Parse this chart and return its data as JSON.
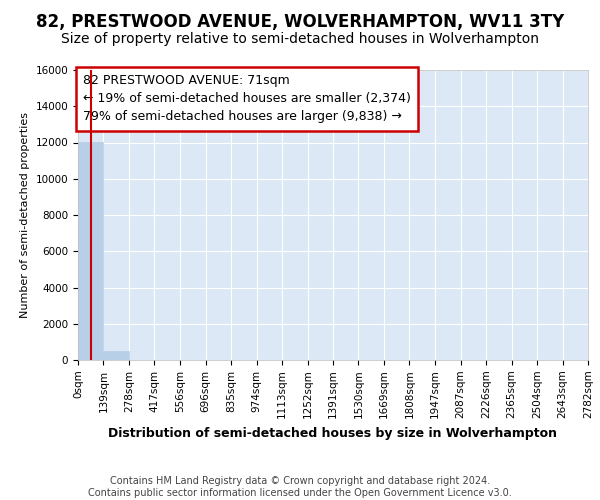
{
  "title": "82, PRESTWOOD AVENUE, WOLVERHAMPTON, WV11 3TY",
  "subtitle": "Size of property relative to semi-detached houses in Wolverhampton",
  "xlabel": "Distribution of semi-detached houses by size in Wolverhampton",
  "ylabel": "Number of semi-detached properties",
  "bin_edges": [
    0,
    139,
    278,
    417,
    556,
    696,
    835,
    974,
    1113,
    1252,
    1391,
    1530,
    1669,
    1808,
    1947,
    2087,
    2226,
    2365,
    2504,
    2643,
    2782
  ],
  "bar_heights": [
    12050,
    500,
    0,
    0,
    0,
    0,
    0,
    0,
    0,
    0,
    0,
    0,
    0,
    0,
    0,
    0,
    0,
    0,
    0,
    0
  ],
  "bar_color": "#b8cfe8",
  "bar_edge_color": "#b8cfe8",
  "ylim": [
    0,
    16000
  ],
  "yticks": [
    0,
    2000,
    4000,
    6000,
    8000,
    10000,
    12000,
    14000,
    16000
  ],
  "property_size": 71,
  "property_line_color": "#cc0000",
  "annotation_text": "82 PRESTWOOD AVENUE: 71sqm\n← 19% of semi-detached houses are smaller (2,374)\n79% of semi-detached houses are larger (9,838) →",
  "annotation_box_color": "#ffffff",
  "annotation_box_edge_color": "#cc0000",
  "footer_text": "Contains HM Land Registry data © Crown copyright and database right 2024.\nContains public sector information licensed under the Open Government Licence v3.0.",
  "figure_bg_color": "#ffffff",
  "plot_bg_color": "#dce8f5",
  "grid_color": "#ffffff",
  "title_fontsize": 12,
  "subtitle_fontsize": 10,
  "tick_label_fontsize": 7.5,
  "ylabel_fontsize": 8,
  "xlabel_fontsize": 9,
  "annotation_fontsize": 9,
  "footer_fontsize": 7
}
